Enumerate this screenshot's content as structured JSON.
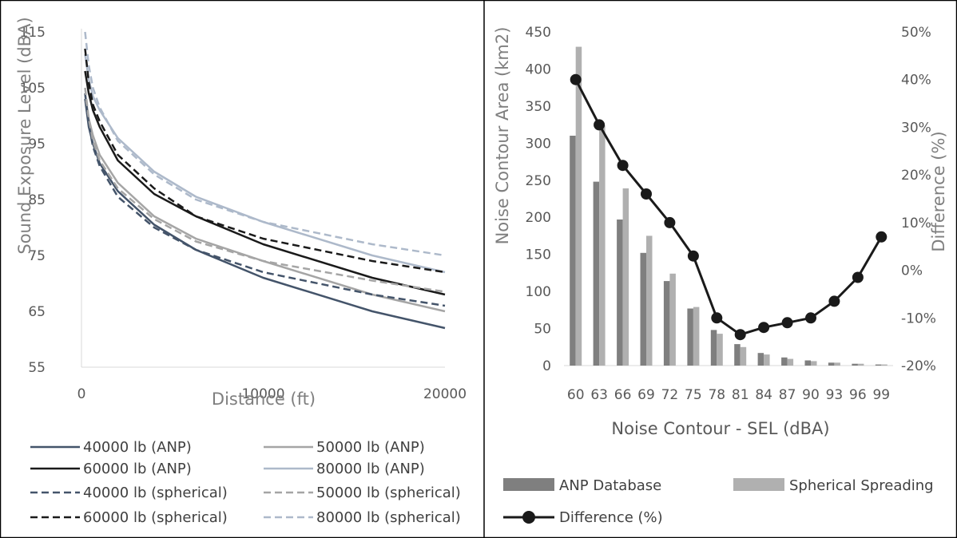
{
  "chart_data": [
    {
      "type": "line",
      "xlabel": "Distance (ft)",
      "ylabel": "Sound Exposure Level (dBA)",
      "xlim": [
        0,
        20000
      ],
      "ylim": [
        55,
        115
      ],
      "xticks": [
        "0",
        "10000",
        "20000"
      ],
      "yticks": [
        "55",
        "65",
        "75",
        "85",
        "95",
        "105",
        "115"
      ],
      "grid": false,
      "legend_position": "bottom",
      "series": [
        {
          "name": "40000 lb (ANP)",
          "color": "#44546a",
          "dash": false,
          "x": [
            200,
            400,
            630,
            1000,
            2000,
            4000,
            6300,
            10000,
            16000,
            20000
          ],
          "y": [
            103,
            98,
            95,
            91.5,
            86.5,
            80.5,
            76,
            71,
            65,
            62
          ]
        },
        {
          "name": "50000 lb (ANP)",
          "color": "#a5a5a5",
          "dash": false,
          "x": [
            200,
            400,
            630,
            1000,
            2000,
            4000,
            6300,
            10000,
            16000,
            20000
          ],
          "y": [
            104,
            99.5,
            96.5,
            93,
            88,
            82,
            78,
            74,
            68,
            65
          ]
        },
        {
          "name": "60000 lb (ANP)",
          "color": "#1a1a1a",
          "dash": false,
          "x": [
            200,
            400,
            630,
            1000,
            2000,
            4000,
            6300,
            10000,
            16000,
            20000
          ],
          "y": [
            108,
            104,
            101,
            98,
            92,
            86,
            82,
            77,
            71,
            68
          ]
        },
        {
          "name": "80000 lb (ANP)",
          "color": "#adb9ca",
          "dash": false,
          "x": [
            200,
            400,
            630,
            1000,
            2000,
            4000,
            6300,
            10000,
            16000,
            20000
          ],
          "y": [
            111,
            106.5,
            103.5,
            101,
            96,
            90,
            85.5,
            81,
            75,
            72
          ]
        },
        {
          "name": "40000 lb (spherical)",
          "color": "#44546a",
          "dash": true,
          "x": [
            200,
            400,
            630,
            1000,
            2000,
            4000,
            6300,
            10000,
            16000,
            20000
          ],
          "y": [
            104,
            98.5,
            94.5,
            91,
            85.5,
            80,
            76,
            72,
            68,
            66
          ]
        },
        {
          "name": "50000 lb (spherical)",
          "color": "#a5a5a5",
          "dash": true,
          "x": [
            200,
            400,
            630,
            1000,
            2000,
            4000,
            6300,
            10000,
            16000,
            20000
          ],
          "y": [
            105,
            99.5,
            95.5,
            92,
            87,
            81.5,
            77.5,
            74,
            70.5,
            68.5
          ]
        },
        {
          "name": "60000 lb (spherical)",
          "color": "#1a1a1a",
          "dash": true,
          "x": [
            200,
            400,
            630,
            1000,
            2000,
            4000,
            6300,
            10000,
            16000,
            20000
          ],
          "y": [
            112,
            106,
            102,
            99,
            93,
            87,
            82,
            78,
            74,
            72
          ]
        },
        {
          "name": "80000 lb (spherical)",
          "color": "#adb9ca",
          "dash": true,
          "x": [
            200,
            400,
            630,
            1000,
            2000,
            4000,
            6300,
            10000,
            16000,
            20000
          ],
          "y": [
            115,
            109,
            105,
            101.5,
            95.5,
            89.5,
            85,
            81,
            77,
            75
          ]
        }
      ]
    },
    {
      "type": "bar",
      "xlabel": "Noise Contour - SEL (dBA)",
      "ylabel": "Noise Contour Area (km2)",
      "y2label": "Difference (%)",
      "ylim": [
        0,
        450
      ],
      "y2lim": [
        -20,
        50
      ],
      "yticks": [
        "0",
        "50",
        "100",
        "150",
        "200",
        "250",
        "300",
        "350",
        "400",
        "450"
      ],
      "y2ticks": [
        "-20%",
        "-10%",
        "0%",
        "10%",
        "20%",
        "30%",
        "40%",
        "50%"
      ],
      "grid": false,
      "legend_position": "bottom",
      "categories": [
        "60",
        "63",
        "66",
        "69",
        "72",
        "75",
        "78",
        "81",
        "84",
        "87",
        "90",
        "93",
        "96",
        "99"
      ],
      "series": [
        {
          "name": "ANP Database",
          "type": "bar",
          "color": "#7f7f7f",
          "values": [
            310,
            248,
            197,
            152,
            114,
            77,
            48,
            29,
            17,
            11,
            7,
            4,
            2.5,
            1.5
          ]
        },
        {
          "name": "Spherical Spreading",
          "type": "bar",
          "color": "#b0b0b0",
          "values": [
            430,
            324,
            239,
            175,
            124,
            79,
            43,
            25,
            15,
            9,
            6,
            4,
            2.5,
            1.5
          ]
        },
        {
          "name": "Difference (%)",
          "type": "line",
          "axis": "right",
          "color": "#1a1a1a",
          "values": [
            40,
            30.5,
            22,
            16,
            10,
            3,
            -10,
            -13.5,
            -12,
            -11,
            -10,
            -6.5,
            -1.5,
            7
          ]
        }
      ]
    }
  ]
}
